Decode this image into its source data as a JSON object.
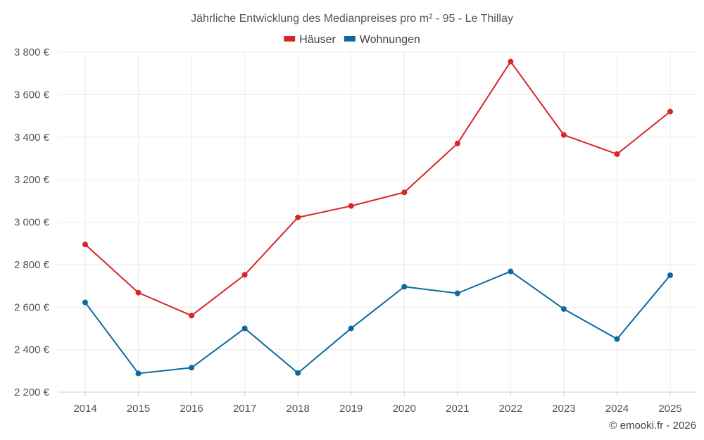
{
  "chart_data": {
    "type": "line",
    "title": "Jährliche Entwicklung des Medianpreises pro m² - 95 - Le Thillay",
    "categories": [
      "2014",
      "2015",
      "2016",
      "2017",
      "2018",
      "2019",
      "2020",
      "2021",
      "2022",
      "2023",
      "2024",
      "2025"
    ],
    "series": [
      {
        "name": "Häuser",
        "color": "#d62728",
        "values": [
          2895,
          2668,
          2560,
          2752,
          3022,
          3076,
          3140,
          3370,
          3755,
          3410,
          3320,
          3520
        ]
      },
      {
        "name": "Wohnungen",
        "color": "#0b6a9c",
        "values": [
          2622,
          2288,
          2315,
          2500,
          2290,
          2500,
          2696,
          2665,
          2768,
          2591,
          2450,
          2750
        ]
      }
    ],
    "ylim": [
      2200,
      3800
    ],
    "yticks": [
      2200,
      2400,
      2600,
      2800,
      3000,
      3200,
      3400,
      3600,
      3800
    ],
    "ytick_labels": [
      "2 200 €",
      "2 400 €",
      "2 600 €",
      "2 800 €",
      "3 000 €",
      "3 200 €",
      "3 400 €",
      "3 600 €",
      "3 800 €"
    ],
    "xlabel": "",
    "ylabel": "",
    "grid": true,
    "legend_position": "top-center"
  },
  "credit": "© emooki.fr - 2026"
}
